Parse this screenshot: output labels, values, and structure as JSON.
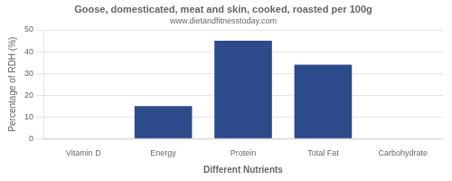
{
  "chart_data": {
    "type": "bar",
    "title": "Goose, domesticated, meat and skin, cooked, roasted per 100g",
    "subtitle": "www.dietandfitnesstoday.com",
    "xlabel": "Different Nutrients",
    "ylabel": "Percentage of RDH (%)",
    "categories": [
      "Vitamin D",
      "Energy",
      "Protein",
      "Total Fat",
      "Carbohydrate"
    ],
    "values": [
      0,
      15,
      45,
      34,
      0
    ],
    "color": "#2d4a8a",
    "ylim": [
      0,
      50
    ],
    "yticks": [
      0,
      10,
      20,
      30,
      40,
      50
    ],
    "grid": "y"
  }
}
